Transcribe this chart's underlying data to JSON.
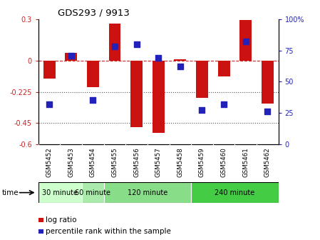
{
  "title": "GDS293 / 9913",
  "samples": [
    "GSM5452",
    "GSM5453",
    "GSM5454",
    "GSM5455",
    "GSM5456",
    "GSM5457",
    "GSM5458",
    "GSM5459",
    "GSM5460",
    "GSM5461",
    "GSM5462"
  ],
  "log_ratio": [
    -0.13,
    0.055,
    -0.19,
    0.27,
    -0.48,
    -0.52,
    0.01,
    -0.265,
    -0.115,
    0.295,
    -0.31
  ],
  "percentile": [
    32,
    71,
    35,
    78,
    80,
    69,
    62,
    27,
    32,
    82,
    26
  ],
  "ylim_left": [
    -0.6,
    0.3
  ],
  "ylim_right": [
    0,
    100
  ],
  "yticks_left": [
    -0.6,
    -0.45,
    -0.225,
    0.0,
    0.3
  ],
  "ytick_labels_left": [
    "-0.6",
    "-0.45",
    "-0.225",
    "0",
    "0.3"
  ],
  "yticks_right": [
    0,
    25,
    50,
    75,
    100
  ],
  "ytick_labels_right": [
    "0",
    "25",
    "50",
    "75",
    "100%"
  ],
  "hlines": [
    0.0,
    -0.225,
    -0.45
  ],
  "hline_styles": [
    "dashed",
    "dotted",
    "dotted"
  ],
  "hline_colors": [
    "#cc2222",
    "#555555",
    "#555555"
  ],
  "bar_color": "#cc1111",
  "dot_color": "#2222bb",
  "bar_width": 0.55,
  "dot_size": 28,
  "groups": [
    {
      "label": "30 minute",
      "start": 0,
      "end": 2,
      "color": "#ccffcc"
    },
    {
      "label": "60 minute",
      "start": 2,
      "end": 3,
      "color": "#aaeaaa"
    },
    {
      "label": "120 minute",
      "start": 3,
      "end": 7,
      "color": "#88dd88"
    },
    {
      "label": "240 minute",
      "start": 7,
      "end": 11,
      "color": "#44cc44"
    }
  ],
  "xlabel_time": "time",
  "legend_bar_label": "log ratio",
  "legend_dot_label": "percentile rank within the sample",
  "background_color": "#ffffff",
  "plot_bg_color": "#ffffff",
  "tick_label_color_left": "#cc2222",
  "tick_label_color_right": "#2222bb",
  "label_bg_color": "#cccccc"
}
